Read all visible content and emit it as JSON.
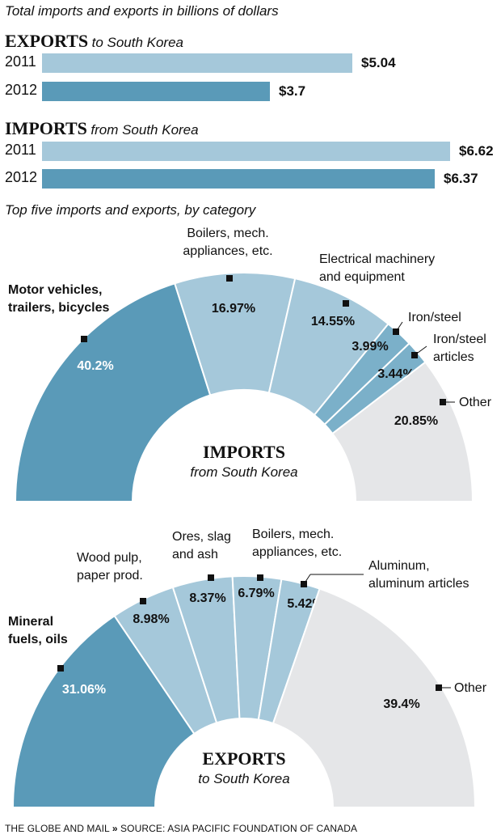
{
  "subtitle": "Total imports and exports in billions of dollars",
  "colors": {
    "light": "#a5c8da",
    "dark": "#5a9ab8",
    "mid": "#7bb0c9",
    "other": "#e5e6e8"
  },
  "bar_charts": {
    "exports": {
      "title": "EXPORTS",
      "subtitle": "to South Korea"
    },
    "imports": {
      "title": "IMPORTS",
      "subtitle": "from South Korea"
    }
  },
  "section2_title": "Top five imports and exports, by category",
  "imports_pie": {
    "title": "IMPORTS",
    "subtitle": "from South Korea"
  },
  "exports_pie": {
    "title": "EXPORTS",
    "subtitle": "to South Korea"
  },
  "footer": {
    "outlet": "THE GLOBE AND MAIL",
    "separator": "»",
    "source": "SOURCE: ASIA PACIFIC FOUNDATION OF CANADA"
  },
  "chart_data": [
    {
      "type": "bar",
      "title": "EXPORTS to South Korea",
      "categories": [
        "2011",
        "2012"
      ],
      "values": [
        5.04,
        3.7
      ],
      "labels": [
        "$5.04",
        "$3.7"
      ],
      "xlim": [
        0,
        6.62
      ]
    },
    {
      "type": "bar",
      "title": "IMPORTS from South Korea",
      "categories": [
        "2011",
        "2012"
      ],
      "values": [
        6.62,
        6.37
      ],
      "labels": [
        "$6.62",
        "$6.37"
      ],
      "xlim": [
        0,
        6.62
      ]
    },
    {
      "type": "pie",
      "title": "IMPORTS from South Korea",
      "slices": [
        {
          "label": [
            "Motor vehicles,",
            "trailers, bicycles"
          ],
          "value": 40.2,
          "text": "40.2%"
        },
        {
          "label": [
            "Boilers, mech.",
            "appliances, etc."
          ],
          "value": 16.97,
          "text": "16.97%"
        },
        {
          "label": [
            "Electrical machinery",
            "and equipment"
          ],
          "value": 14.55,
          "text": "14.55%"
        },
        {
          "label": [
            "Iron/steel"
          ],
          "value": 3.99,
          "text": "3.99%"
        },
        {
          "label": [
            "Iron/steel",
            "articles"
          ],
          "value": 3.44,
          "text": "3.44%"
        },
        {
          "label": [
            "Other"
          ],
          "value": 20.85,
          "text": "20.85%"
        }
      ]
    },
    {
      "type": "pie",
      "title": "EXPORTS to South Korea",
      "slices": [
        {
          "label": [
            "Mineral",
            "fuels, oils"
          ],
          "value": 31.06,
          "text": "31.06%"
        },
        {
          "label": [
            "Wood pulp,",
            "paper prod."
          ],
          "value": 8.98,
          "text": "8.98%"
        },
        {
          "label": [
            "Ores, slag",
            "and ash"
          ],
          "value": 8.37,
          "text": "8.37%"
        },
        {
          "label": [
            "Boilers, mech.",
            "appliances, etc."
          ],
          "value": 6.79,
          "text": "6.79%"
        },
        {
          "label": [
            "Aluminum,",
            "aluminum articles"
          ],
          "value": 5.42,
          "text": "5.42%"
        },
        {
          "label": [
            "Other"
          ],
          "value": 39.4,
          "text": "39.4%"
        }
      ]
    }
  ]
}
